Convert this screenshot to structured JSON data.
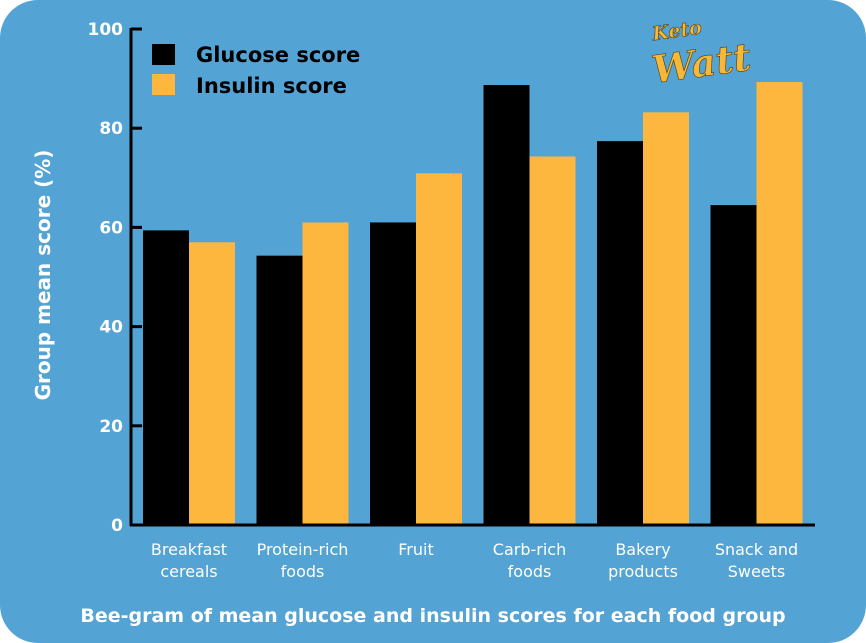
{
  "chart_data": {
    "type": "bar",
    "title": "Bee-gram of mean glucose and insulin scores for each food group",
    "ylabel": "Group mean score (%)",
    "xlabel": "",
    "ylim": [
      0,
      100
    ],
    "yticks": [
      "0",
      "20",
      "40",
      "60",
      "80",
      "100"
    ],
    "categories": [
      [
        "Breakfast",
        "cereals"
      ],
      [
        "Protein-rich",
        "foods"
      ],
      [
        "Fruit"
      ],
      [
        "Carb-rich",
        "foods"
      ],
      [
        "Bakery",
        "products"
      ],
      [
        "Snack and",
        "Sweets"
      ]
    ],
    "series": [
      {
        "name": "Glucose score",
        "color": "#000000",
        "values": [
          59.4,
          54.3,
          61.0,
          88.7,
          77.4,
          64.5
        ]
      },
      {
        "name": "Insulin score",
        "color": "#fdb73e",
        "values": [
          57.0,
          61.0,
          70.9,
          74.3,
          83.2,
          89.3
        ]
      }
    ],
    "legend": "top-left",
    "grid": false,
    "background": "#53a3d4"
  },
  "logo": {
    "line1": "Keto",
    "line2": "Watt"
  }
}
